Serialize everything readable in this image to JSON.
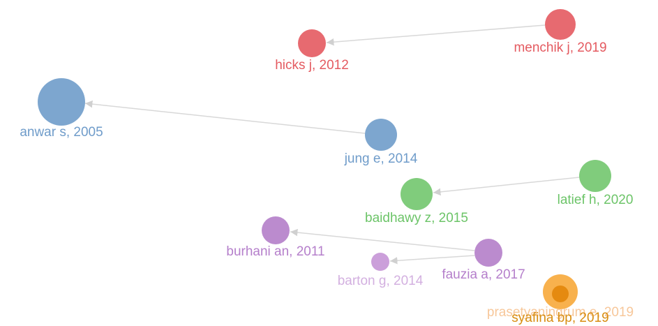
{
  "nodes": [
    {
      "label": "menchik j, 2019"
    },
    {
      "label": "hicks j, 2012"
    },
    {
      "label": "anwar s, 2005"
    },
    {
      "label": "jung e, 2014"
    },
    {
      "label": "latief h, 2020"
    },
    {
      "label": "baidhawy z, 2015"
    },
    {
      "label": "burhani an, 2011"
    },
    {
      "label": "fauzia a, 2017"
    },
    {
      "label": "barton g, 2014"
    },
    {
      "label": "prasetyaningrum e, 2019"
    },
    {
      "label": "syafina bp, 2019"
    }
  ]
}
